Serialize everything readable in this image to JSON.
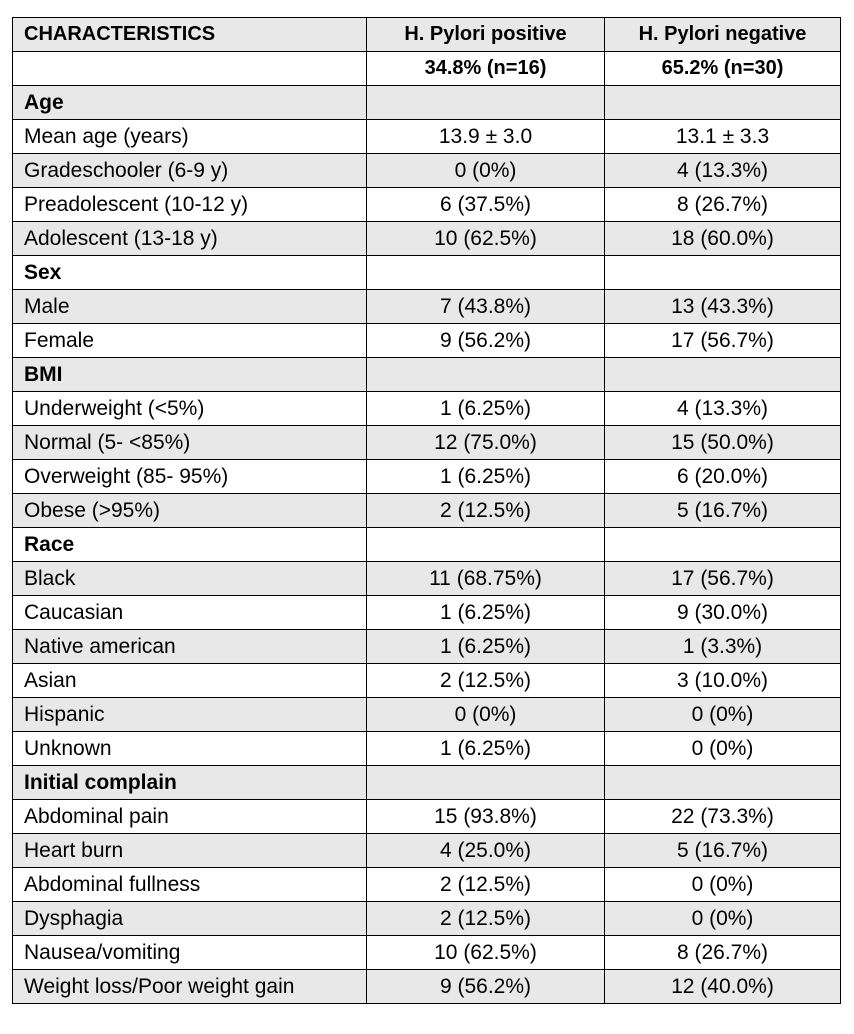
{
  "header": {
    "col1": "CHARACTERISTICS",
    "col2": "H. Pylori positive",
    "col3": "H. Pylori negative",
    "col2_sub": "34.8% (n=16)",
    "col3_sub": "65.2% (n=30)"
  },
  "rows": [
    {
      "label": "Age",
      "pos": "",
      "neg": "",
      "section": true
    },
    {
      "label": "Mean age (years)",
      "pos": "13.9 ± 3.0",
      "neg": "13.1 ± 3.3"
    },
    {
      "label": "Gradeschooler (6-9 y)",
      "pos": "0 (0%)",
      "neg": "4 (13.3%)"
    },
    {
      "label": "Preadolescent (10-12 y)",
      "pos": "6 (37.5%)",
      "neg": "8 (26.7%)"
    },
    {
      "label": "Adolescent (13-18 y)",
      "pos": "10 (62.5%)",
      "neg": "18 (60.0%)"
    },
    {
      "label": "Sex",
      "pos": "",
      "neg": "",
      "section": true
    },
    {
      "label": "Male",
      "pos": "7 (43.8%)",
      "neg": "13 (43.3%)"
    },
    {
      "label": "Female",
      "pos": "9 (56.2%)",
      "neg": "17 (56.7%)"
    },
    {
      "label": "BMI",
      "pos": "",
      "neg": "",
      "section": true
    },
    {
      "label": "Underweight (<5%)",
      "pos": "1 (6.25%)",
      "neg": "4 (13.3%)"
    },
    {
      "label": "Normal (5- <85%)",
      "pos": "12 (75.0%)",
      "neg": "15 (50.0%)"
    },
    {
      "label": "Overweight (85- 95%)",
      "pos": "1 (6.25%)",
      "neg": "6 (20.0%)"
    },
    {
      "label": "Obese (>95%)",
      "pos": "2 (12.5%)",
      "neg": "5 (16.7%)"
    },
    {
      "label": "Race",
      "pos": "",
      "neg": "",
      "section": true
    },
    {
      "label": "Black",
      "pos": "11 (68.75%)",
      "neg": "17 (56.7%)"
    },
    {
      "label": "Caucasian",
      "pos": "1 (6.25%)",
      "neg": "9 (30.0%)"
    },
    {
      "label": "Native american",
      "pos": "1 (6.25%)",
      "neg": "1 (3.3%)"
    },
    {
      "label": "Asian",
      "pos": "2 (12.5%)",
      "neg": "3 (10.0%)"
    },
    {
      "label": "Hispanic",
      "pos": "0 (0%)",
      "neg": "0 (0%)"
    },
    {
      "label": "Unknown",
      "pos": "1 (6.25%)",
      "neg": "0 (0%)"
    },
    {
      "label": "Initial complain",
      "pos": "",
      "neg": "",
      "section": true
    },
    {
      "label": "Abdominal pain",
      "pos": "15 (93.8%)",
      "neg": "22 (73.3%)"
    },
    {
      "label": "Heart burn",
      "pos": "4 (25.0%)",
      "neg": "5 (16.7%)"
    },
    {
      "label": "Abdominal fullness",
      "pos": "2 (12.5%)",
      "neg": "0 (0%)"
    },
    {
      "label": "Dysphagia",
      "pos": "2 (12.5%)",
      "neg": "0 (0%)"
    },
    {
      "label": "Nausea/vomiting",
      "pos": "10 (62.5%)",
      "neg": "8 (26.7%)"
    },
    {
      "label": "Weight loss/Poor weight gain",
      "pos": "9 (56.2%)",
      "neg": "12 (40.0%)"
    }
  ]
}
